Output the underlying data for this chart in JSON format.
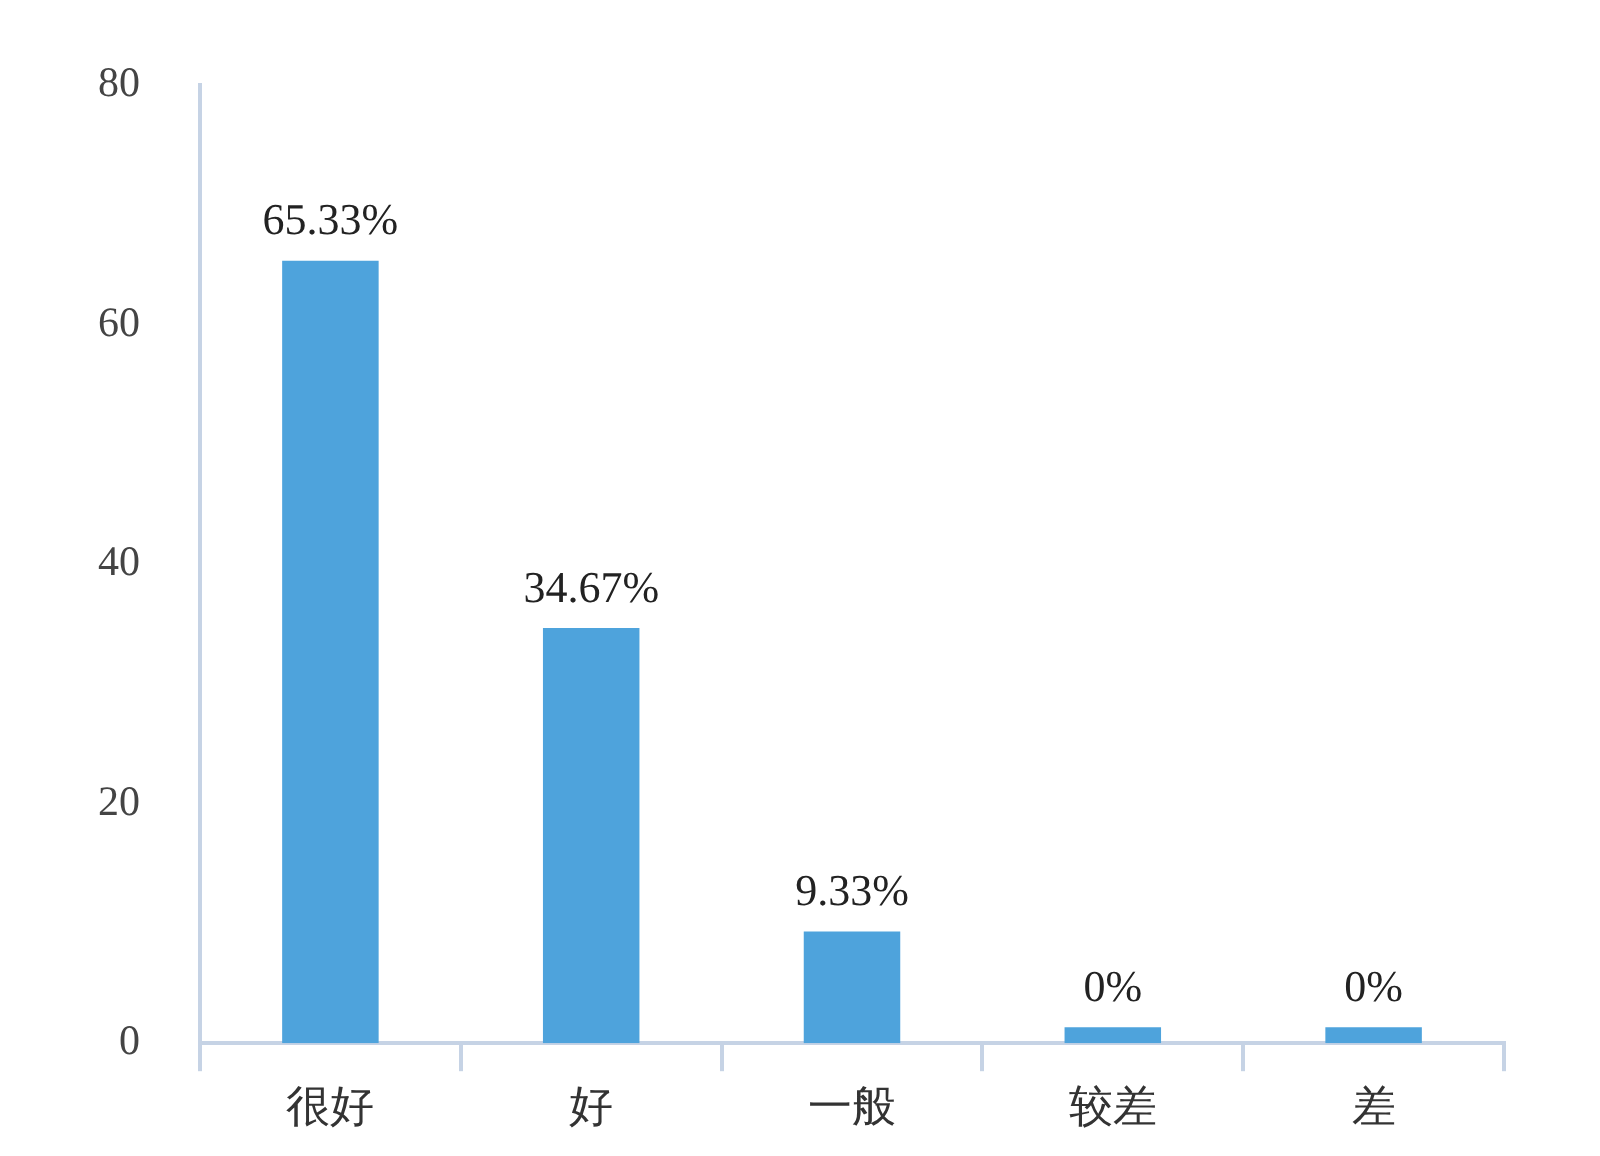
{
  "chart_data": {
    "type": "bar",
    "categories": [
      "很好",
      "好",
      "一般",
      "较差",
      "差"
    ],
    "values": [
      65.33,
      34.67,
      9.33,
      0,
      0
    ],
    "color": "#4ea3dc",
    "value_labels": [
      "65.33%",
      "34.67%",
      "9.33%",
      "0%",
      "0%"
    ],
    "ylim": [
      0,
      80
    ],
    "yticks": [
      0,
      20,
      40,
      60,
      80
    ]
  }
}
